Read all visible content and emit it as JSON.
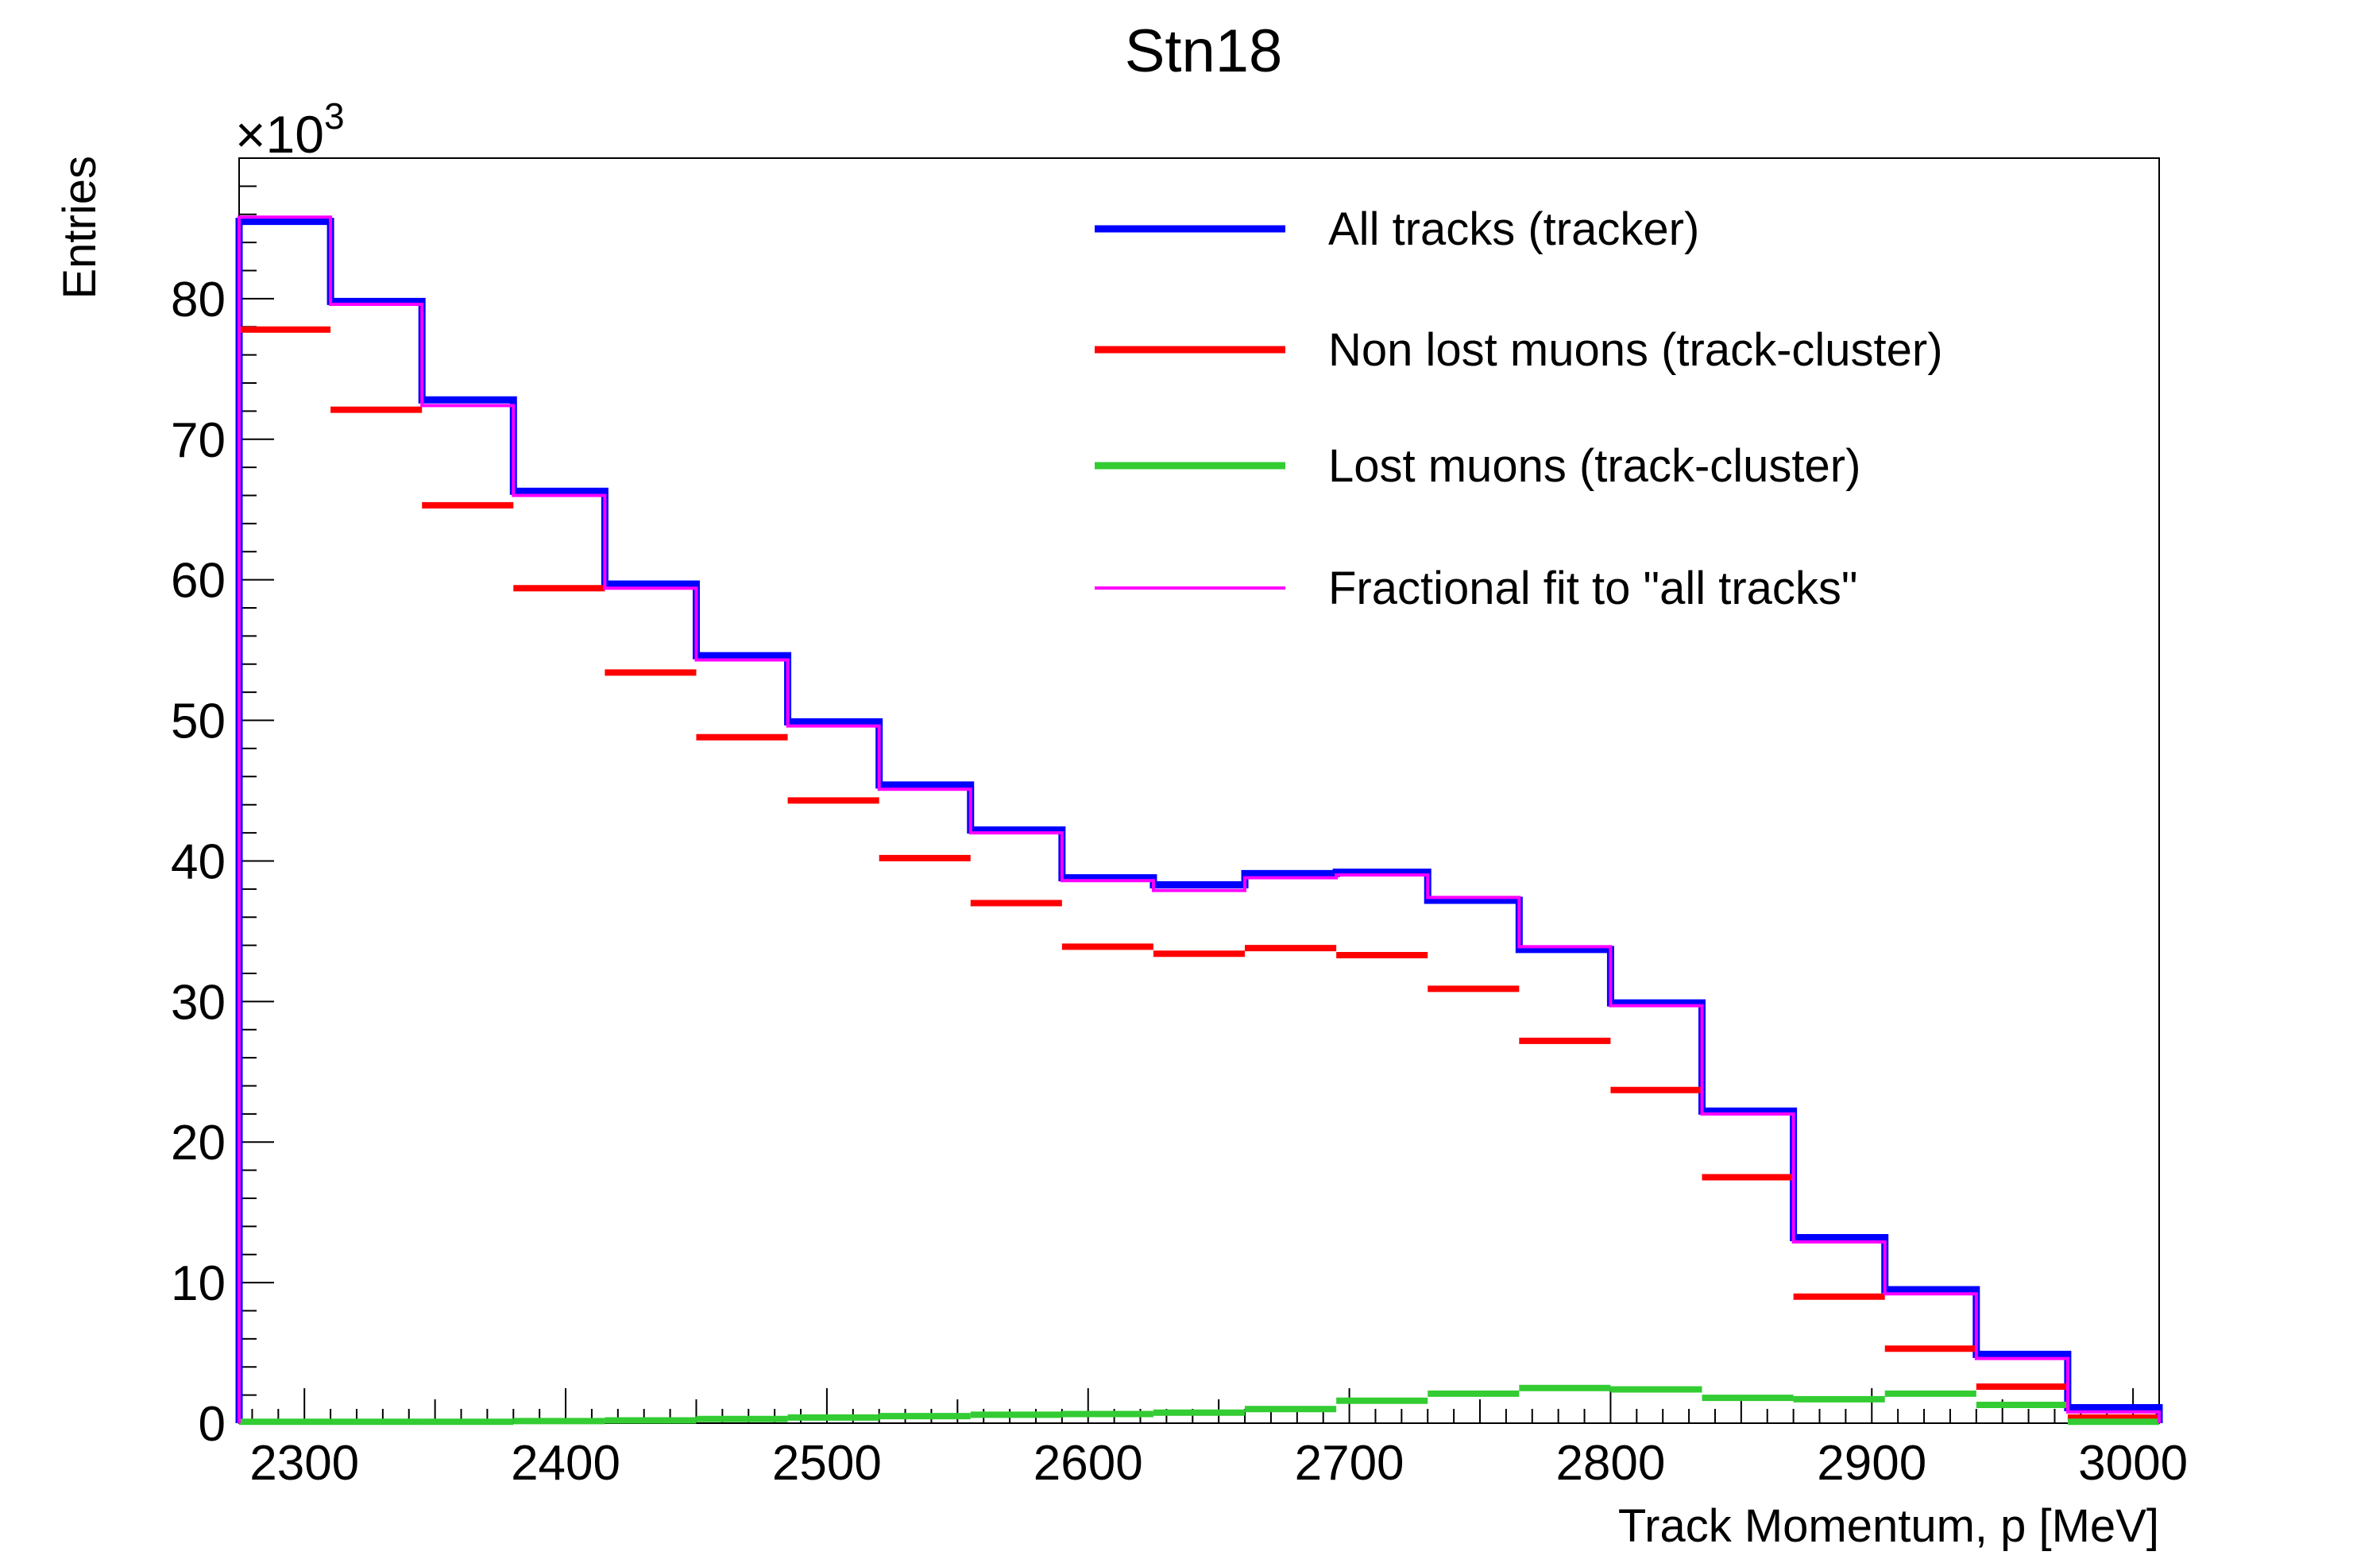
{
  "chart_data": {
    "type": "histogram",
    "title": "Stn18",
    "xlabel": "Track Momentum, p [MeV]",
    "ylabel": "Entries",
    "y_multiplier": "×10",
    "y_multiplier_exp": "3",
    "xlim": [
      2275,
      3010
    ],
    "ylim": [
      0,
      90
    ],
    "x_ticks": [
      2300,
      2400,
      2500,
      2600,
      2700,
      2800,
      2900,
      3000
    ],
    "y_ticks": [
      0,
      10,
      20,
      30,
      40,
      50,
      60,
      70,
      80
    ],
    "bin_edges": [
      2275,
      2310,
      2345,
      2380,
      2415,
      2450,
      2485,
      2520,
      2555,
      2590,
      2625,
      2660,
      2695,
      2730,
      2765,
      2800,
      2835,
      2870,
      2905,
      2940,
      2975,
      3010
    ],
    "legend_placement": "top-right",
    "series": [
      {
        "name": "All tracks (tracker)",
        "color": "#0000ff",
        "style": "step",
        "values": [
          85.5,
          79.8,
          72.8,
          66.3,
          59.7,
          54.6,
          49.9,
          45.4,
          42.2,
          38.8,
          38.3,
          39.1,
          39.2,
          37.2,
          33.7,
          29.9,
          22.2,
          13.2,
          9.5,
          4.9,
          1.1
        ]
      },
      {
        "name": "Non lost muons (track-cluster)",
        "color": "#ff0000",
        "style": "markers",
        "values": [
          77.8,
          72.1,
          65.3,
          59.4,
          53.4,
          48.8,
          44.3,
          40.2,
          37.0,
          33.9,
          33.4,
          33.8,
          33.3,
          30.9,
          27.2,
          23.7,
          17.5,
          9.0,
          5.3,
          2.6,
          0.4
        ]
      },
      {
        "name": "Lost muons (track-cluster)",
        "color": "#33cc33",
        "style": "markers",
        "values": [
          0.1,
          0.1,
          0.1,
          0.15,
          0.2,
          0.3,
          0.4,
          0.5,
          0.6,
          0.65,
          0.75,
          1.0,
          1.6,
          2.1,
          2.5,
          2.4,
          1.8,
          1.7,
          2.1,
          1.3,
          0.1
        ]
      },
      {
        "name": "Fractional fit to \"all tracks\"",
        "color": "#ff00ff",
        "style": "step",
        "values": [
          85.8,
          79.6,
          72.4,
          66.0,
          59.4,
          54.3,
          49.6,
          45.1,
          42.0,
          38.6,
          37.9,
          38.8,
          39.0,
          37.4,
          33.9,
          29.7,
          22.0,
          12.9,
          9.2,
          4.6,
          0.8
        ]
      }
    ]
  }
}
